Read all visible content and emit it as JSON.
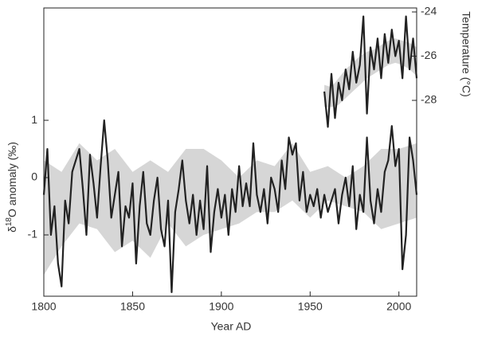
{
  "chart_data": {
    "type": "line",
    "x_label": "Year AD",
    "y_label": {
      "prefix": "δ",
      "sup": "18",
      "rest": "O anomaly (‰)"
    },
    "y2_label": "Temperature (°C)",
    "xlim": [
      1800,
      2010
    ],
    "xticks": [
      1800,
      1850,
      1900,
      1950,
      2000
    ],
    "ylim": [
      -2.07,
      2.96
    ],
    "yticks": [
      1,
      0,
      -1
    ],
    "y2lim": [
      -36.86,
      -23.82
    ],
    "y2ticks": [
      -24,
      -26,
      -28
    ],
    "series": [
      {
        "color": "#222222",
        "x": [
          1800,
          1802,
          1804,
          1806,
          1808,
          1810,
          1812,
          1814,
          1816,
          1818,
          1820,
          1822,
          1824,
          1826,
          1828,
          1830,
          1832,
          1834,
          1836,
          1838,
          1840,
          1842,
          1844,
          1846,
          1848,
          1850,
          1852,
          1854,
          1856,
          1858,
          1860,
          1862,
          1864,
          1866,
          1868,
          1870,
          1872,
          1874,
          1876,
          1878,
          1880,
          1882,
          1884,
          1886,
          1888,
          1890,
          1892,
          1894,
          1896,
          1898,
          1900,
          1902,
          1904,
          1906,
          1908,
          1910,
          1912,
          1914,
          1916,
          1918,
          1920,
          1922,
          1924,
          1926,
          1928,
          1930,
          1932,
          1934,
          1936,
          1938,
          1940,
          1942,
          1944,
          1946,
          1948,
          1950,
          1952,
          1954,
          1956,
          1958,
          1960,
          1962,
          1964,
          1966,
          1968,
          1970,
          1972,
          1974,
          1976,
          1978,
          1980,
          1982,
          1984,
          1986,
          1988,
          1990,
          1992,
          1994,
          1996,
          1998,
          2000,
          2002,
          2004,
          2006,
          2008,
          2010
        ],
        "values": [
          -0.3,
          0.5,
          -1.0,
          -0.5,
          -1.5,
          -1.9,
          -0.4,
          -0.8,
          0.1,
          0.3,
          0.5,
          -0.2,
          -1.0,
          0.4,
          -0.1,
          -0.7,
          0.2,
          1.0,
          0.3,
          -0.7,
          -0.3,
          0.1,
          -1.2,
          -0.5,
          -0.7,
          -0.1,
          -1.5,
          -0.5,
          0.1,
          -0.8,
          -1.0,
          -0.4,
          0.0,
          -0.9,
          -1.2,
          -0.4,
          -2.0,
          -0.6,
          -0.2,
          0.3,
          -0.4,
          -0.8,
          -0.3,
          -1.0,
          -0.4,
          -0.9,
          0.2,
          -1.3,
          -0.6,
          -0.2,
          -0.7,
          -0.3,
          -1.0,
          -0.2,
          -0.6,
          0.2,
          -0.5,
          -0.1,
          -0.5,
          0.6,
          -0.3,
          -0.6,
          -0.2,
          -0.8,
          0.0,
          -0.2,
          -0.6,
          0.3,
          -0.2,
          0.7,
          0.4,
          0.6,
          -0.4,
          0.1,
          -0.6,
          -0.3,
          -0.5,
          -0.2,
          -0.7,
          -0.3,
          -0.6,
          -0.4,
          -0.2,
          -0.8,
          -0.3,
          0.0,
          -0.5,
          0.2,
          -0.9,
          -0.3,
          -0.6,
          0.7,
          -0.4,
          -0.8,
          -0.2,
          -0.6,
          0.1,
          0.3,
          0.9,
          0.2,
          0.5,
          -1.6,
          -1.0,
          0.7,
          0.3,
          -0.3
        ],
        "band": {
          "color": "#d6d6d6",
          "x": [
            1800,
            1810,
            1820,
            1830,
            1840,
            1850,
            1860,
            1870,
            1880,
            1890,
            1900,
            1910,
            1920,
            1930,
            1940,
            1950,
            1960,
            1970,
            1980,
            1990,
            2000,
            2010
          ],
          "upper": [
            0.3,
            0.1,
            0.6,
            0.3,
            0.5,
            0.1,
            0.3,
            0.1,
            0.5,
            0.5,
            0.3,
            0.0,
            0.3,
            0.2,
            0.6,
            0.1,
            0.2,
            0.0,
            0.2,
            0.5,
            0.5,
            0.6
          ],
          "lower": [
            -1.7,
            -1.2,
            -0.8,
            -0.9,
            -1.3,
            -1.1,
            -1.4,
            -0.8,
            -1.2,
            -1.0,
            -0.9,
            -0.8,
            -0.6,
            -0.6,
            -0.4,
            -0.7,
            -0.4,
            -0.5,
            -0.6,
            -0.9,
            -0.8,
            -0.7
          ]
        }
      },
      {
        "color": "#222222",
        "axis": "y2",
        "x": [
          1958,
          1960,
          1962,
          1964,
          1966,
          1968,
          1970,
          1972,
          1974,
          1976,
          1978,
          1980,
          1982,
          1984,
          1986,
          1988,
          1990,
          1992,
          1994,
          1996,
          1998,
          2000,
          2002,
          2004,
          2006,
          2008,
          2010
        ],
        "values": [
          -27.6,
          -29.2,
          -26.8,
          -28.8,
          -27.2,
          -28.0,
          -26.6,
          -27.5,
          -25.8,
          -27.2,
          -26.4,
          -24.2,
          -28.6,
          -25.6,
          -26.6,
          -25.2,
          -27.0,
          -25.0,
          -26.3,
          -24.8,
          -26.0,
          -25.3,
          -27.0,
          -24.2,
          -26.6,
          -25.2,
          -27.0
        ],
        "band": {
          "color": "#d6d6d6",
          "x": [
            1958,
            1962,
            1966,
            1970,
            1974,
            1978,
            1982,
            1986,
            1990,
            1994,
            1998,
            2002,
            2006,
            2010
          ],
          "upper": [
            -27.3,
            -27.4,
            -27.0,
            -26.6,
            -26.3,
            -26.0,
            -25.8,
            -25.7,
            -25.5,
            -25.3,
            -25.2,
            -25.3,
            -25.4,
            -25.6
          ],
          "lower": [
            -28.3,
            -28.3,
            -28.2,
            -27.9,
            -27.6,
            -27.3,
            -27.0,
            -26.8,
            -26.6,
            -26.4,
            -26.3,
            -26.4,
            -26.6,
            -26.9
          ]
        }
      }
    ]
  }
}
